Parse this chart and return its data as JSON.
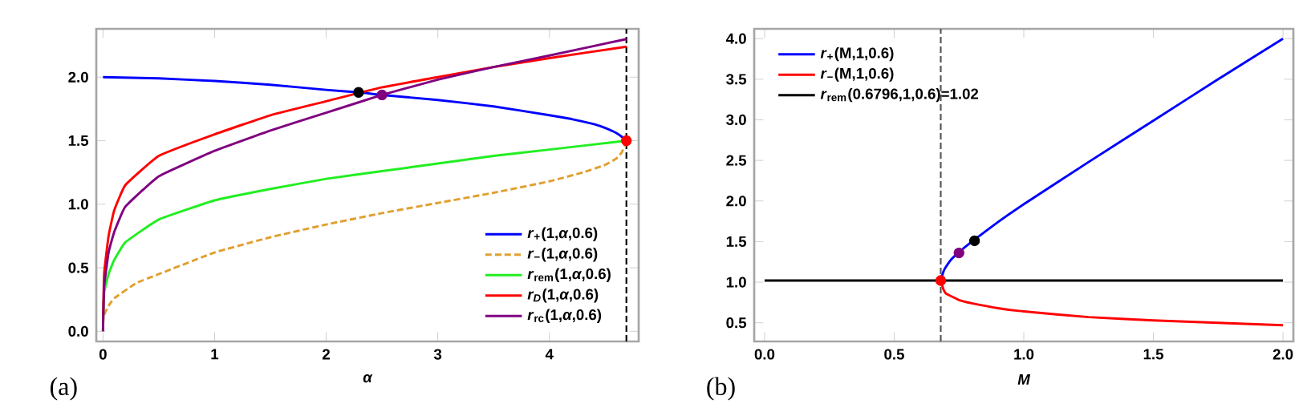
{
  "chart_data": [
    {
      "type": "line",
      "xlabel": "α",
      "xlim": [
        -0.06,
        4.8
      ],
      "ylim": [
        -0.08,
        2.38
      ],
      "legend": "bottom right",
      "grid": false,
      "xticks": [
        {
          "value": 0,
          "label": "0"
        },
        {
          "value": 1,
          "label": "1"
        },
        {
          "value": 2,
          "label": "2"
        },
        {
          "value": 3,
          "label": "3"
        },
        {
          "value": 4,
          "label": "4"
        }
      ],
      "yticks": [
        {
          "value": 0,
          "label": "0.0"
        },
        {
          "value": 0.5,
          "label": "0.5"
        },
        {
          "value": 1,
          "label": "1.0"
        },
        {
          "value": 1.5,
          "label": "1.5"
        },
        {
          "value": 2,
          "label": "2.0"
        }
      ],
      "ref_lines": [
        {
          "axis": "x",
          "value": 4.69,
          "color": "#000000",
          "line_style": "dashed"
        }
      ],
      "annotations": [
        {
          "text": "(a)"
        }
      ],
      "series": [
        {
          "name": "*r*$_{+}$(1,*α*,0.6)",
          "color": "#0000ff",
          "line_style": "solid",
          "x": [
            0,
            0.5,
            1,
            1.5,
            2,
            2.3,
            2.5,
            3,
            3.5,
            4,
            4.2,
            4.4,
            4.5,
            4.6,
            4.65,
            4.69
          ],
          "values": [
            2.0,
            1.99,
            1.97,
            1.94,
            1.9,
            1.88,
            1.86,
            1.82,
            1.77,
            1.7,
            1.67,
            1.63,
            1.6,
            1.56,
            1.53,
            1.5
          ]
        },
        {
          "name": "*r*$_{−}$(1,*α*,0.6)",
          "color": "#e0a030",
          "line_style": "dashed",
          "x": [
            0.01,
            0.05,
            0.1,
            0.3,
            0.5,
            1,
            1.5,
            2,
            2.5,
            3,
            3.5,
            4,
            4.3,
            4.5,
            4.6,
            4.65,
            4.69
          ],
          "values": [
            0.13,
            0.2,
            0.26,
            0.38,
            0.45,
            0.62,
            0.74,
            0.84,
            0.93,
            1.01,
            1.09,
            1.18,
            1.25,
            1.31,
            1.36,
            1.41,
            1.5
          ]
        },
        {
          "name": "*r*$_{rem}$(1,*α*,0.6)",
          "color": "#22ee22",
          "line_style": "solid",
          "x": [
            0,
            0.01,
            0.05,
            0.1,
            0.2,
            0.5,
            1,
            1.5,
            2,
            2.5,
            3,
            3.5,
            4,
            4.69
          ],
          "values": [
            0,
            0.3,
            0.45,
            0.56,
            0.7,
            0.88,
            1.03,
            1.12,
            1.2,
            1.26,
            1.32,
            1.38,
            1.43,
            1.5
          ]
        },
        {
          "name": "*r$_{D}$*(1,*α*,0.6)",
          "color": "#ff0000",
          "line_style": "solid",
          "x": [
            0,
            0.01,
            0.05,
            0.1,
            0.2,
            0.5,
            1,
            1.5,
            2,
            2.5,
            3,
            3.5,
            4,
            4.69
          ],
          "values": [
            0,
            0.45,
            0.75,
            0.95,
            1.15,
            1.38,
            1.55,
            1.7,
            1.81,
            1.92,
            2.0,
            2.08,
            2.15,
            2.24
          ]
        },
        {
          "name": "*r*$_{rc}$(1,*α*,0.6)",
          "color": "#800080",
          "line_style": "solid",
          "x": [
            0,
            0.01,
            0.05,
            0.1,
            0.2,
            0.5,
            1,
            1.5,
            2,
            2.5,
            3,
            3.5,
            4,
            4.69
          ],
          "values": [
            0,
            0.35,
            0.62,
            0.78,
            0.98,
            1.22,
            1.42,
            1.58,
            1.72,
            1.86,
            1.98,
            2.08,
            2.17,
            2.3
          ]
        },
        {
          "type": "scatter",
          "marker": "circle",
          "color": "#000000",
          "x": [
            2.29
          ],
          "values": [
            1.88
          ]
        },
        {
          "type": "scatter",
          "marker": "circle",
          "color": "#800080",
          "x": [
            2.5
          ],
          "values": [
            1.86
          ]
        },
        {
          "type": "scatter",
          "marker": "circle",
          "color": "#ff0000",
          "x": [
            4.69
          ],
          "values": [
            1.5
          ]
        }
      ]
    },
    {
      "type": "line",
      "xlabel": "M",
      "xlim": [
        -0.04,
        2.04
      ],
      "ylim": [
        0.27,
        4.12
      ],
      "legend": "top left",
      "grid": false,
      "xticks": [
        {
          "value": 0,
          "label": "0.0"
        },
        {
          "value": 0.5,
          "label": "0.5"
        },
        {
          "value": 1,
          "label": "1.0"
        },
        {
          "value": 1.5,
          "label": "1.5"
        },
        {
          "value": 2,
          "label": "2.0"
        }
      ],
      "yticks": [
        {
          "value": 0.5,
          "label": "0.5"
        },
        {
          "value": 1,
          "label": "1.0"
        },
        {
          "value": 1.5,
          "label": "1.5"
        },
        {
          "value": 2,
          "label": "2.0"
        },
        {
          "value": 2.5,
          "label": "2.5"
        },
        {
          "value": 3,
          "label": "3.0"
        },
        {
          "value": 3.5,
          "label": "3.5"
        },
        {
          "value": 4,
          "label": "4.0"
        }
      ],
      "ref_lines": [
        {
          "axis": "x",
          "value": 0.6796,
          "color": "#555555",
          "line_style": "dashed"
        }
      ],
      "annotations": [
        {
          "text": "(b)"
        }
      ],
      "series": [
        {
          "name": "*r*$_{+}$(M,1,0.6)",
          "color": "#0000ff",
          "line_style": "solid",
          "x": [
            0.6796,
            0.69,
            0.7,
            0.72,
            0.75,
            0.8,
            0.9,
            1,
            1.25,
            1.5,
            1.75,
            2
          ],
          "values": [
            1.02,
            1.13,
            1.19,
            1.28,
            1.37,
            1.5,
            1.74,
            1.96,
            2.48,
            2.99,
            3.5,
            4.0
          ]
        },
        {
          "name": "*r*$_{−}$(M,1,0.6)",
          "color": "#ff0000",
          "line_style": "solid",
          "x": [
            0.6796,
            0.69,
            0.7,
            0.75,
            0.8,
            0.9,
            1,
            1.25,
            1.5,
            1.75,
            2
          ],
          "values": [
            1.02,
            0.91,
            0.86,
            0.78,
            0.74,
            0.68,
            0.64,
            0.57,
            0.53,
            0.5,
            0.47
          ]
        },
        {
          "name": "*r*$_{rem}$(0.6796,1,0.6)=1.02",
          "color": "#000000",
          "line_style": "solid",
          "x": [
            0,
            2
          ],
          "values": [
            1.02,
            1.02
          ]
        },
        {
          "type": "scatter",
          "marker": "circle",
          "color": "#ff0000",
          "x": [
            0.6796
          ],
          "values": [
            1.02
          ]
        },
        {
          "type": "scatter",
          "marker": "circle",
          "color": "#800080",
          "x": [
            0.75
          ],
          "values": [
            1.36
          ]
        },
        {
          "type": "scatter",
          "marker": "circle",
          "color": "#000000",
          "x": [
            0.81
          ],
          "values": [
            1.51
          ]
        }
      ]
    }
  ]
}
